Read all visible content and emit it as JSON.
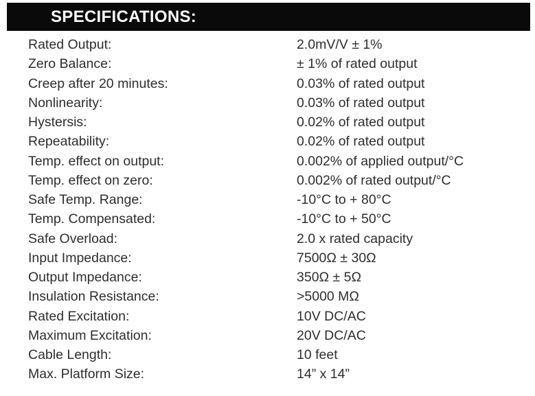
{
  "header": {
    "title": "SPECIFICATIONS:"
  },
  "colors": {
    "header_bg": "#0a0a0a",
    "header_text": "#ffffff",
    "body_text": "#2e2e2e",
    "page_bg": "#ffffff"
  },
  "specs": [
    {
      "label": "Rated Output:",
      "value": "2.0mV/V ± 1%"
    },
    {
      "label": "Zero Balance:",
      "value": "± 1% of rated output"
    },
    {
      "label": "Creep after 20 minutes:",
      "value": "0.03% of rated output"
    },
    {
      "label": "Nonlinearity:",
      "value": "0.03% of rated output"
    },
    {
      "label": "Hystersis:",
      "value": "0.02% of rated output"
    },
    {
      "label": "Repeatability:",
      "value": "0.02% of rated output"
    },
    {
      "label": "Temp. effect on output:",
      "value": "0.002% of applied output/°C"
    },
    {
      "label": "Temp. effect on zero:",
      "value": "0.002% of rated output/°C"
    },
    {
      "label": "Safe Temp. Range:",
      "value": "-10°C to + 80°C"
    },
    {
      "label": "Temp. Compensated:",
      "value": "-10°C to + 50°C"
    },
    {
      "label": "Safe Overload:",
      "value": "2.0 x rated capacity"
    },
    {
      "label": "Input Impedance:",
      "value": "7500Ω ± 30Ω"
    },
    {
      "label": "Output Impedance:",
      "value": "350Ω ± 5Ω"
    },
    {
      "label": "Insulation Resistance:",
      "value": ">5000 MΩ"
    },
    {
      "label": "Rated Excitation:",
      "value": "10V DC/AC"
    },
    {
      "label": "Maximum Excitation:",
      "value": "20V DC/AC"
    },
    {
      "label": "Cable Length:",
      "value": "10 feet"
    },
    {
      "label": "Max. Platform Size:",
      "value": "14” x 14”"
    }
  ]
}
